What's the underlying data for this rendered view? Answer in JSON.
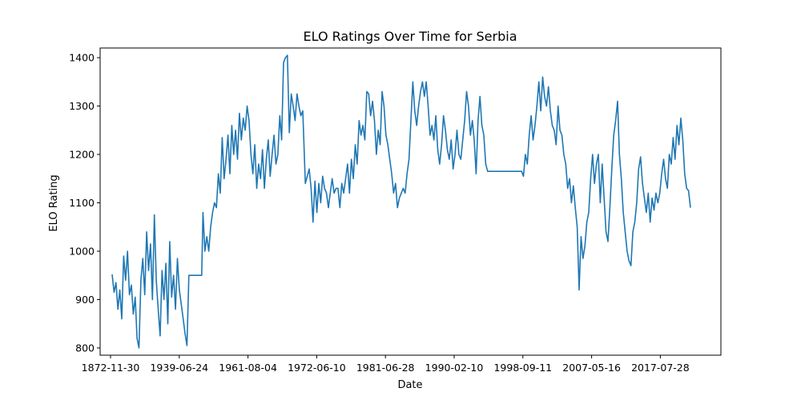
{
  "chart_data": {
    "type": "line",
    "title": "ELO Ratings Over Time for Serbia",
    "xlabel": "Date",
    "ylabel": "ELO Rating",
    "grid": false,
    "legend": "none",
    "ylim": [
      785,
      1420
    ],
    "x_tick_labels": [
      "1872-11-30",
      "1939-06-24",
      "1961-08-04",
      "1972-06-10",
      "1981-06-28",
      "1990-02-10",
      "1998-09-11",
      "2007-05-16",
      "2017-07-28"
    ],
    "y_ticks": [
      800,
      900,
      1000,
      1100,
      1200,
      1300,
      1400
    ],
    "series": [
      {
        "color": "#1f77b4",
        "points": [
          [
            0,
            952
          ],
          [
            0.3,
            915
          ],
          [
            0.6,
            935
          ],
          [
            0.9,
            880
          ],
          [
            1.2,
            920
          ],
          [
            1.5,
            860
          ],
          [
            1.8,
            990
          ],
          [
            2.1,
            940
          ],
          [
            2.4,
            1000
          ],
          [
            2.7,
            910
          ],
          [
            3.0,
            930
          ],
          [
            3.3,
            870
          ],
          [
            3.6,
            905
          ],
          [
            3.9,
            820
          ],
          [
            4.2,
            800
          ],
          [
            4.5,
            940
          ],
          [
            4.8,
            985
          ],
          [
            5.1,
            910
          ],
          [
            5.4,
            1040
          ],
          [
            5.7,
            960
          ],
          [
            6.0,
            1015
          ],
          [
            6.3,
            900
          ],
          [
            6.6,
            1075
          ],
          [
            6.9,
            940
          ],
          [
            7.2,
            880
          ],
          [
            7.5,
            825
          ],
          [
            7.8,
            960
          ],
          [
            8.1,
            900
          ],
          [
            8.4,
            975
          ],
          [
            8.7,
            850
          ],
          [
            9.0,
            1020
          ],
          [
            9.3,
            905
          ],
          [
            9.6,
            950
          ],
          [
            9.9,
            880
          ],
          [
            10.2,
            985
          ],
          [
            10.5,
            920
          ],
          [
            10.8,
            890
          ],
          [
            11.1,
            860
          ],
          [
            11.4,
            830
          ],
          [
            11.7,
            805
          ],
          [
            12.0,
            950
          ],
          [
            13.0,
            950
          ],
          [
            14.0,
            950
          ],
          [
            14.2,
            1080
          ],
          [
            14.5,
            1000
          ],
          [
            14.8,
            1030
          ],
          [
            15.1,
            1000
          ],
          [
            15.4,
            1050
          ],
          [
            15.7,
            1080
          ],
          [
            16.0,
            1100
          ],
          [
            16.3,
            1090
          ],
          [
            16.6,
            1160
          ],
          [
            16.9,
            1120
          ],
          [
            17.2,
            1235
          ],
          [
            17.5,
            1150
          ],
          [
            17.8,
            1190
          ],
          [
            18.1,
            1240
          ],
          [
            18.4,
            1160
          ],
          [
            18.7,
            1260
          ],
          [
            19.0,
            1200
          ],
          [
            19.3,
            1250
          ],
          [
            19.6,
            1190
          ],
          [
            19.9,
            1285
          ],
          [
            20.2,
            1230
          ],
          [
            20.5,
            1275
          ],
          [
            20.8,
            1250
          ],
          [
            21.1,
            1300
          ],
          [
            21.4,
            1270
          ],
          [
            21.7,
            1200
          ],
          [
            22.0,
            1160
          ],
          [
            22.3,
            1220
          ],
          [
            22.6,
            1130
          ],
          [
            22.9,
            1180
          ],
          [
            23.2,
            1150
          ],
          [
            23.5,
            1210
          ],
          [
            23.8,
            1130
          ],
          [
            24.1,
            1190
          ],
          [
            24.4,
            1230
          ],
          [
            24.7,
            1155
          ],
          [
            25.0,
            1200
          ],
          [
            25.3,
            1240
          ],
          [
            25.6,
            1180
          ],
          [
            25.9,
            1200
          ],
          [
            26.2,
            1280
          ],
          [
            26.5,
            1230
          ],
          [
            26.8,
            1390
          ],
          [
            27.1,
            1400
          ],
          [
            27.4,
            1405
          ],
          [
            27.7,
            1245
          ],
          [
            28.0,
            1325
          ],
          [
            28.3,
            1300
          ],
          [
            28.6,
            1270
          ],
          [
            28.9,
            1325
          ],
          [
            29.2,
            1300
          ],
          [
            29.5,
            1280
          ],
          [
            29.8,
            1290
          ],
          [
            30.2,
            1140
          ],
          [
            30.5,
            1155
          ],
          [
            30.8,
            1170
          ],
          [
            31.1,
            1130
          ],
          [
            31.4,
            1060
          ],
          [
            31.7,
            1145
          ],
          [
            32.0,
            1080
          ],
          [
            32.3,
            1140
          ],
          [
            32.6,
            1100
          ],
          [
            32.9,
            1155
          ],
          [
            33.2,
            1130
          ],
          [
            33.5,
            1120
          ],
          [
            33.8,
            1090
          ],
          [
            34.1,
            1120
          ],
          [
            34.4,
            1150
          ],
          [
            34.7,
            1120
          ],
          [
            35.0,
            1130
          ],
          [
            35.3,
            1130
          ],
          [
            35.6,
            1090
          ],
          [
            35.9,
            1140
          ],
          [
            36.2,
            1120
          ],
          [
            36.5,
            1150
          ],
          [
            36.8,
            1180
          ],
          [
            37.1,
            1120
          ],
          [
            37.4,
            1190
          ],
          [
            37.7,
            1150
          ],
          [
            38.0,
            1220
          ],
          [
            38.3,
            1180
          ],
          [
            38.6,
            1270
          ],
          [
            38.9,
            1240
          ],
          [
            39.2,
            1260
          ],
          [
            39.5,
            1230
          ],
          [
            39.8,
            1330
          ],
          [
            40.1,
            1325
          ],
          [
            40.4,
            1280
          ],
          [
            40.7,
            1310
          ],
          [
            41.0,
            1270
          ],
          [
            41.3,
            1200
          ],
          [
            41.6,
            1250
          ],
          [
            41.9,
            1220
          ],
          [
            42.2,
            1330
          ],
          [
            42.5,
            1300
          ],
          [
            42.8,
            1240
          ],
          [
            43.1,
            1220
          ],
          [
            43.4,
            1190
          ],
          [
            43.7,
            1160
          ],
          [
            44.0,
            1120
          ],
          [
            44.3,
            1140
          ],
          [
            44.6,
            1090
          ],
          [
            44.9,
            1110
          ],
          [
            45.2,
            1120
          ],
          [
            45.5,
            1130
          ],
          [
            45.8,
            1120
          ],
          [
            46.1,
            1160
          ],
          [
            46.4,
            1190
          ],
          [
            46.7,
            1270
          ],
          [
            47.0,
            1350
          ],
          [
            47.3,
            1290
          ],
          [
            47.6,
            1260
          ],
          [
            47.9,
            1300
          ],
          [
            48.2,
            1330
          ],
          [
            48.5,
            1350
          ],
          [
            48.8,
            1320
          ],
          [
            49.1,
            1350
          ],
          [
            49.4,
            1300
          ],
          [
            49.7,
            1240
          ],
          [
            50.0,
            1260
          ],
          [
            50.3,
            1230
          ],
          [
            50.6,
            1280
          ],
          [
            50.9,
            1210
          ],
          [
            51.2,
            1180
          ],
          [
            51.5,
            1220
          ],
          [
            51.8,
            1280
          ],
          [
            52.1,
            1250
          ],
          [
            52.4,
            1210
          ],
          [
            52.7,
            1190
          ],
          [
            53.0,
            1230
          ],
          [
            53.3,
            1170
          ],
          [
            53.6,
            1200
          ],
          [
            53.9,
            1250
          ],
          [
            54.2,
            1200
          ],
          [
            54.5,
            1190
          ],
          [
            54.8,
            1230
          ],
          [
            55.1,
            1270
          ],
          [
            55.4,
            1330
          ],
          [
            55.7,
            1300
          ],
          [
            56.0,
            1240
          ],
          [
            56.3,
            1270
          ],
          [
            56.6,
            1230
          ],
          [
            56.9,
            1160
          ],
          [
            57.2,
            1270
          ],
          [
            57.5,
            1320
          ],
          [
            57.8,
            1260
          ],
          [
            58.1,
            1240
          ],
          [
            58.4,
            1180
          ],
          [
            58.7,
            1165
          ],
          [
            60.0,
            1165
          ],
          [
            62.0,
            1165
          ],
          [
            64.0,
            1165
          ],
          [
            64.3,
            1155
          ],
          [
            64.6,
            1200
          ],
          [
            64.9,
            1180
          ],
          [
            65.2,
            1240
          ],
          [
            65.5,
            1280
          ],
          [
            65.8,
            1230
          ],
          [
            66.1,
            1260
          ],
          [
            66.4,
            1300
          ],
          [
            66.7,
            1350
          ],
          [
            67.0,
            1290
          ],
          [
            67.3,
            1360
          ],
          [
            67.6,
            1320
          ],
          [
            67.9,
            1300
          ],
          [
            68.2,
            1340
          ],
          [
            68.5,
            1290
          ],
          [
            68.8,
            1260
          ],
          [
            69.1,
            1250
          ],
          [
            69.4,
            1220
          ],
          [
            69.7,
            1300
          ],
          [
            70.0,
            1250
          ],
          [
            70.3,
            1240
          ],
          [
            70.6,
            1200
          ],
          [
            70.9,
            1180
          ],
          [
            71.2,
            1130
          ],
          [
            71.5,
            1150
          ],
          [
            71.8,
            1100
          ],
          [
            72.1,
            1135
          ],
          [
            72.4,
            1090
          ],
          [
            72.7,
            1050
          ],
          [
            73.0,
            920
          ],
          [
            73.3,
            1030
          ],
          [
            73.6,
            985
          ],
          [
            73.9,
            1010
          ],
          [
            74.2,
            1060
          ],
          [
            74.5,
            1080
          ],
          [
            74.8,
            1150
          ],
          [
            75.1,
            1200
          ],
          [
            75.4,
            1140
          ],
          [
            75.7,
            1180
          ],
          [
            76.0,
            1200
          ],
          [
            76.3,
            1100
          ],
          [
            76.6,
            1180
          ],
          [
            76.9,
            1110
          ],
          [
            77.2,
            1040
          ],
          [
            77.5,
            1020
          ],
          [
            77.8,
            1090
          ],
          [
            78.1,
            1170
          ],
          [
            78.4,
            1240
          ],
          [
            78.7,
            1270
          ],
          [
            79.0,
            1310
          ],
          [
            79.3,
            1200
          ],
          [
            79.6,
            1150
          ],
          [
            79.9,
            1080
          ],
          [
            80.2,
            1040
          ],
          [
            80.5,
            1000
          ],
          [
            80.8,
            980
          ],
          [
            81.1,
            970
          ],
          [
            81.4,
            1040
          ],
          [
            81.7,
            1060
          ],
          [
            82.0,
            1100
          ],
          [
            82.3,
            1170
          ],
          [
            82.6,
            1195
          ],
          [
            82.9,
            1140
          ],
          [
            83.2,
            1110
          ],
          [
            83.5,
            1080
          ],
          [
            83.8,
            1120
          ],
          [
            84.1,
            1060
          ],
          [
            84.4,
            1110
          ],
          [
            84.7,
            1085
          ],
          [
            85.0,
            1120
          ],
          [
            85.3,
            1100
          ],
          [
            85.6,
            1120
          ],
          [
            85.9,
            1160
          ],
          [
            86.2,
            1190
          ],
          [
            86.5,
            1150
          ],
          [
            86.8,
            1130
          ],
          [
            87.1,
            1200
          ],
          [
            87.4,
            1180
          ],
          [
            87.7,
            1235
          ],
          [
            88.0,
            1190
          ],
          [
            88.3,
            1260
          ],
          [
            88.6,
            1220
          ],
          [
            88.9,
            1275
          ],
          [
            89.2,
            1230
          ],
          [
            89.5,
            1160
          ],
          [
            89.8,
            1130
          ],
          [
            90.1,
            1125
          ],
          [
            90.4,
            1090
          ]
        ]
      }
    ]
  }
}
